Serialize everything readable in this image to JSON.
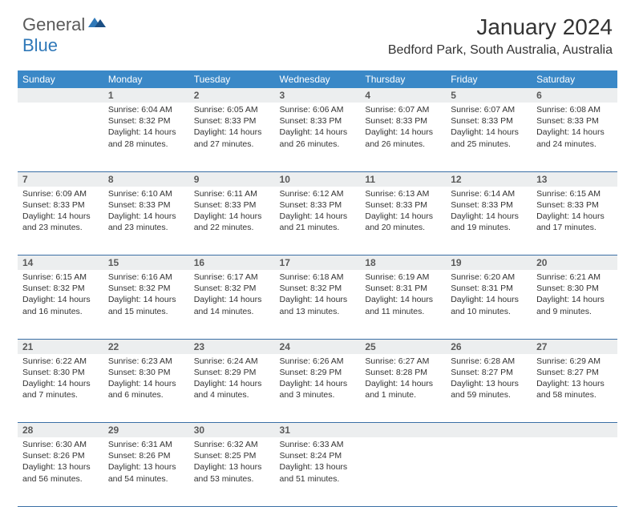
{
  "logo": {
    "general": "General",
    "blue": "Blue"
  },
  "title": "January 2024",
  "location": "Bedford Park, South Australia, Australia",
  "colors": {
    "header_bg": "#3a88c7",
    "header_text": "#ffffff",
    "daynum_bg": "#eceeef",
    "daynum_text": "#5a5a5a",
    "row_divider": "#3a6fa5",
    "body_text": "#333333",
    "logo_gray": "#5a5a5a",
    "logo_blue": "#2f78b8"
  },
  "weekdays": [
    "Sunday",
    "Monday",
    "Tuesday",
    "Wednesday",
    "Thursday",
    "Friday",
    "Saturday"
  ],
  "weeks": [
    {
      "days": [
        {
          "n": "",
          "sunrise": "",
          "sunset": "",
          "daylight": ""
        },
        {
          "n": "1",
          "sunrise": "Sunrise: 6:04 AM",
          "sunset": "Sunset: 8:32 PM",
          "daylight": "Daylight: 14 hours and 28 minutes."
        },
        {
          "n": "2",
          "sunrise": "Sunrise: 6:05 AM",
          "sunset": "Sunset: 8:33 PM",
          "daylight": "Daylight: 14 hours and 27 minutes."
        },
        {
          "n": "3",
          "sunrise": "Sunrise: 6:06 AM",
          "sunset": "Sunset: 8:33 PM",
          "daylight": "Daylight: 14 hours and 26 minutes."
        },
        {
          "n": "4",
          "sunrise": "Sunrise: 6:07 AM",
          "sunset": "Sunset: 8:33 PM",
          "daylight": "Daylight: 14 hours and 26 minutes."
        },
        {
          "n": "5",
          "sunrise": "Sunrise: 6:07 AM",
          "sunset": "Sunset: 8:33 PM",
          "daylight": "Daylight: 14 hours and 25 minutes."
        },
        {
          "n": "6",
          "sunrise": "Sunrise: 6:08 AM",
          "sunset": "Sunset: 8:33 PM",
          "daylight": "Daylight: 14 hours and 24 minutes."
        }
      ]
    },
    {
      "days": [
        {
          "n": "7",
          "sunrise": "Sunrise: 6:09 AM",
          "sunset": "Sunset: 8:33 PM",
          "daylight": "Daylight: 14 hours and 23 minutes."
        },
        {
          "n": "8",
          "sunrise": "Sunrise: 6:10 AM",
          "sunset": "Sunset: 8:33 PM",
          "daylight": "Daylight: 14 hours and 23 minutes."
        },
        {
          "n": "9",
          "sunrise": "Sunrise: 6:11 AM",
          "sunset": "Sunset: 8:33 PM",
          "daylight": "Daylight: 14 hours and 22 minutes."
        },
        {
          "n": "10",
          "sunrise": "Sunrise: 6:12 AM",
          "sunset": "Sunset: 8:33 PM",
          "daylight": "Daylight: 14 hours and 21 minutes."
        },
        {
          "n": "11",
          "sunrise": "Sunrise: 6:13 AM",
          "sunset": "Sunset: 8:33 PM",
          "daylight": "Daylight: 14 hours and 20 minutes."
        },
        {
          "n": "12",
          "sunrise": "Sunrise: 6:14 AM",
          "sunset": "Sunset: 8:33 PM",
          "daylight": "Daylight: 14 hours and 19 minutes."
        },
        {
          "n": "13",
          "sunrise": "Sunrise: 6:15 AM",
          "sunset": "Sunset: 8:33 PM",
          "daylight": "Daylight: 14 hours and 17 minutes."
        }
      ]
    },
    {
      "days": [
        {
          "n": "14",
          "sunrise": "Sunrise: 6:15 AM",
          "sunset": "Sunset: 8:32 PM",
          "daylight": "Daylight: 14 hours and 16 minutes."
        },
        {
          "n": "15",
          "sunrise": "Sunrise: 6:16 AM",
          "sunset": "Sunset: 8:32 PM",
          "daylight": "Daylight: 14 hours and 15 minutes."
        },
        {
          "n": "16",
          "sunrise": "Sunrise: 6:17 AM",
          "sunset": "Sunset: 8:32 PM",
          "daylight": "Daylight: 14 hours and 14 minutes."
        },
        {
          "n": "17",
          "sunrise": "Sunrise: 6:18 AM",
          "sunset": "Sunset: 8:32 PM",
          "daylight": "Daylight: 14 hours and 13 minutes."
        },
        {
          "n": "18",
          "sunrise": "Sunrise: 6:19 AM",
          "sunset": "Sunset: 8:31 PM",
          "daylight": "Daylight: 14 hours and 11 minutes."
        },
        {
          "n": "19",
          "sunrise": "Sunrise: 6:20 AM",
          "sunset": "Sunset: 8:31 PM",
          "daylight": "Daylight: 14 hours and 10 minutes."
        },
        {
          "n": "20",
          "sunrise": "Sunrise: 6:21 AM",
          "sunset": "Sunset: 8:30 PM",
          "daylight": "Daylight: 14 hours and 9 minutes."
        }
      ]
    },
    {
      "days": [
        {
          "n": "21",
          "sunrise": "Sunrise: 6:22 AM",
          "sunset": "Sunset: 8:30 PM",
          "daylight": "Daylight: 14 hours and 7 minutes."
        },
        {
          "n": "22",
          "sunrise": "Sunrise: 6:23 AM",
          "sunset": "Sunset: 8:30 PM",
          "daylight": "Daylight: 14 hours and 6 minutes."
        },
        {
          "n": "23",
          "sunrise": "Sunrise: 6:24 AM",
          "sunset": "Sunset: 8:29 PM",
          "daylight": "Daylight: 14 hours and 4 minutes."
        },
        {
          "n": "24",
          "sunrise": "Sunrise: 6:26 AM",
          "sunset": "Sunset: 8:29 PM",
          "daylight": "Daylight: 14 hours and 3 minutes."
        },
        {
          "n": "25",
          "sunrise": "Sunrise: 6:27 AM",
          "sunset": "Sunset: 8:28 PM",
          "daylight": "Daylight: 14 hours and 1 minute."
        },
        {
          "n": "26",
          "sunrise": "Sunrise: 6:28 AM",
          "sunset": "Sunset: 8:27 PM",
          "daylight": "Daylight: 13 hours and 59 minutes."
        },
        {
          "n": "27",
          "sunrise": "Sunrise: 6:29 AM",
          "sunset": "Sunset: 8:27 PM",
          "daylight": "Daylight: 13 hours and 58 minutes."
        }
      ]
    },
    {
      "days": [
        {
          "n": "28",
          "sunrise": "Sunrise: 6:30 AM",
          "sunset": "Sunset: 8:26 PM",
          "daylight": "Daylight: 13 hours and 56 minutes."
        },
        {
          "n": "29",
          "sunrise": "Sunrise: 6:31 AM",
          "sunset": "Sunset: 8:26 PM",
          "daylight": "Daylight: 13 hours and 54 minutes."
        },
        {
          "n": "30",
          "sunrise": "Sunrise: 6:32 AM",
          "sunset": "Sunset: 8:25 PM",
          "daylight": "Daylight: 13 hours and 53 minutes."
        },
        {
          "n": "31",
          "sunrise": "Sunrise: 6:33 AM",
          "sunset": "Sunset: 8:24 PM",
          "daylight": "Daylight: 13 hours and 51 minutes."
        },
        {
          "n": "",
          "sunrise": "",
          "sunset": "",
          "daylight": ""
        },
        {
          "n": "",
          "sunrise": "",
          "sunset": "",
          "daylight": ""
        },
        {
          "n": "",
          "sunrise": "",
          "sunset": "",
          "daylight": ""
        }
      ]
    }
  ]
}
